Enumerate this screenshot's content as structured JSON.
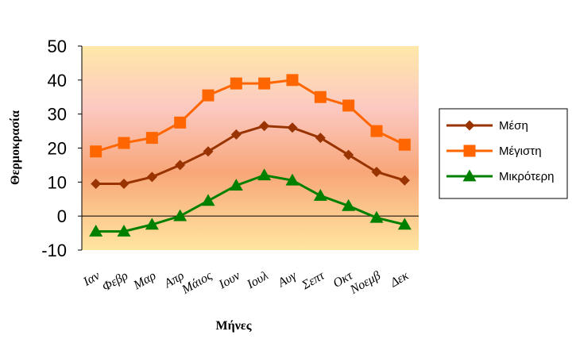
{
  "chart_data": {
    "type": "line",
    "title": "",
    "xlabel": "Μήνες",
    "ylabel": "Θερμοκρασία",
    "categories": [
      "Ιαν",
      "Φεβρ",
      "Μαρ",
      "Απρ",
      "Μάιος",
      "Ιουν",
      "Ιουλ",
      "Αυγ",
      "Σεπτ",
      "Οκτ",
      "Νοεμβ",
      "Δεκ"
    ],
    "ylim": [
      -10,
      50
    ],
    "yticks": [
      "50",
      "40",
      "30",
      "20",
      "10",
      "0",
      "-10"
    ],
    "legend_position": "right",
    "background": "gradient orange-pink",
    "series": [
      {
        "name": "Μέση",
        "color": "#993300",
        "marker": "diamond",
        "values": [
          9.5,
          9.5,
          11.5,
          15,
          19,
          24,
          26.5,
          26,
          23,
          18,
          13,
          10.5
        ]
      },
      {
        "name": "Μέγιστη",
        "color": "#FF6600",
        "marker": "square",
        "values": [
          19,
          21.5,
          23,
          27.5,
          35.5,
          39,
          39,
          40,
          35,
          32.5,
          25,
          21
        ]
      },
      {
        "name": "Μικρότερη",
        "color": "#008000",
        "marker": "triangle",
        "values": [
          -4.5,
          -4.5,
          -2.5,
          0,
          4.5,
          9,
          12,
          10.5,
          6,
          3,
          -0.5,
          -2.5
        ]
      }
    ]
  }
}
